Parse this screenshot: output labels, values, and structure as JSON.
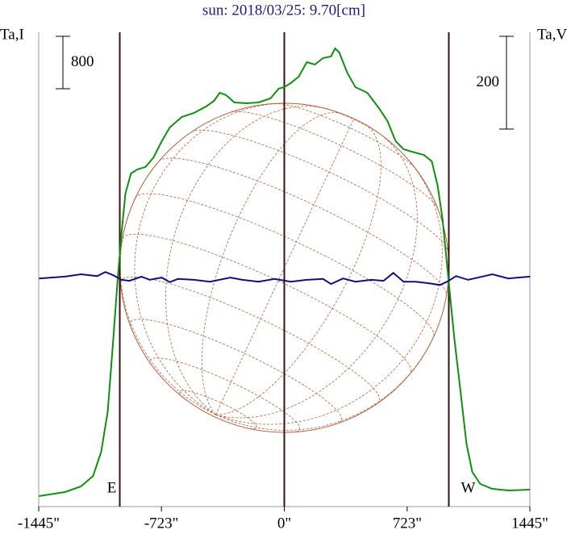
{
  "chart_data": {
    "type": "line",
    "title": "sun: 2018/03/25: 9.70[cm]",
    "y_label": "Ta,I",
    "y2_label": "Ta,V",
    "xlim": [
      -1445,
      1445
    ],
    "xticks": [
      {
        "value": -1445,
        "label": "-1445\""
      },
      {
        "value": -723,
        "label": "-723\""
      },
      {
        "value": 0,
        "label": "0\""
      },
      {
        "value": 723,
        "label": "723\""
      },
      {
        "value": 1445,
        "label": "1445\""
      }
    ],
    "ylim": [
      0,
      7238
    ],
    "y2lim": [
      -494,
      529
    ],
    "y_scale_bar": 800,
    "y2_scale_bar": 200,
    "limb_radius": 968,
    "annotations": [
      {
        "text": "E",
        "x": -968
      },
      {
        "text": "W",
        "x": 968
      }
    ],
    "series": [
      {
        "color": "#109010",
        "x": [
          -1443,
          -1291,
          -1196,
          -1125,
          -1077,
          -1039,
          -1006,
          -982,
          -958,
          -935,
          -902,
          -864,
          -816,
          -769,
          -721,
          -674,
          -603,
          -531,
          -460,
          -413,
          -380,
          -342,
          -294,
          -223,
          -152,
          -81,
          -33,
          0,
          38,
          85,
          133,
          180,
          228,
          275,
          299,
          323,
          370,
          418,
          489,
          560,
          607,
          655,
          702,
          750,
          821,
          868,
          902,
          930,
          954,
          977,
          1001,
          1034,
          1072,
          1106,
          1153,
          1224,
          1319,
          1447
        ],
        "values": [
          160,
          222,
          308,
          468,
          837,
          1453,
          2560,
          3422,
          4161,
          4776,
          5084,
          5145,
          5183,
          5330,
          5576,
          5786,
          5946,
          6007,
          6106,
          6192,
          6315,
          6278,
          6167,
          6155,
          6167,
          6229,
          6377,
          6401,
          6463,
          6561,
          6783,
          6746,
          6844,
          6869,
          6992,
          6930,
          6623,
          6401,
          6315,
          6069,
          5884,
          5576,
          5453,
          5416,
          5367,
          5269,
          4899,
          4407,
          3791,
          3176,
          2560,
          1822,
          960,
          529,
          345,
          271,
          246,
          258
        ]
      },
      {
        "color": "#101080",
        "axis": "y2",
        "x": [
          -1443,
          -1291,
          -1196,
          -1101,
          -1053,
          -1006,
          -958,
          -911,
          -840,
          -792,
          -721,
          -674,
          -626,
          -531,
          -437,
          -318,
          -247,
          -152,
          -57,
          38,
          133,
          228,
          275,
          346,
          418,
          512,
          584,
          641,
          702,
          773,
          845,
          916,
          958,
          1011,
          1082,
          1177,
          1224,
          1319,
          1447
        ],
        "values": [
          -2,
          2,
          7,
          3,
          12,
          5,
          -5,
          -7,
          2,
          -5,
          0,
          -10,
          -3,
          -5,
          -9,
          0,
          -5,
          -9,
          -3,
          -9,
          -5,
          -3,
          -14,
          -2,
          -9,
          -5,
          -7,
          10,
          -9,
          -9,
          -12,
          -16,
          -9,
          3,
          -5,
          3,
          7,
          -2,
          2
        ]
      }
    ]
  }
}
